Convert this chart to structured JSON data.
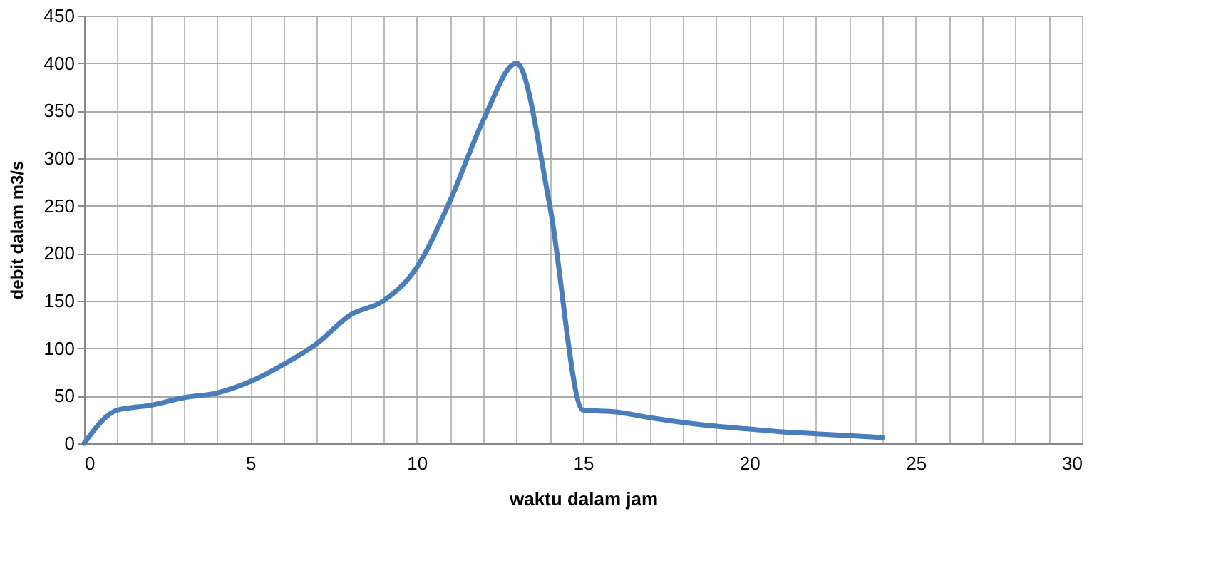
{
  "chart_data": {
    "type": "line",
    "xlabel": "waktu dalam jam",
    "ylabel": "debit dalam m3/s",
    "x": [
      0,
      1,
      2,
      3,
      4,
      5,
      6,
      7,
      8,
      9,
      10,
      11,
      12,
      13,
      14,
      15,
      16,
      17,
      18,
      19,
      20,
      21,
      22,
      23,
      24
    ],
    "series": [
      {
        "color": "#4a7ebb",
        "values": [
          0,
          35,
          40,
          48,
          53,
          65,
          83,
          105,
          135,
          150,
          185,
          255,
          340,
          400,
          250,
          35,
          33,
          27,
          22,
          18,
          15,
          12,
          10,
          8,
          6
        ]
      }
    ],
    "xlim": [
      0,
      30
    ],
    "xticks": [
      0,
      {
        "value": 1,
        "label": null
      },
      {
        "value": 2,
        "label": null
      },
      {
        "value": 3,
        "label": null
      },
      {
        "value": 4,
        "label": null
      },
      5,
      {
        "value": 6,
        "label": null
      },
      {
        "value": 7,
        "label": null
      },
      {
        "value": 8,
        "label": null
      },
      {
        "value": 9,
        "label": null
      },
      10,
      {
        "value": 11,
        "label": null
      },
      {
        "value": 12,
        "label": null
      },
      {
        "value": 13,
        "label": null
      },
      {
        "value": 14,
        "label": null
      },
      15,
      {
        "value": 16,
        "label": null
      },
      {
        "value": 17,
        "label": null
      },
      {
        "value": 18,
        "label": null
      },
      {
        "value": 19,
        "label": null
      },
      20,
      {
        "value": 21,
        "label": null
      },
      {
        "value": 22,
        "label": null
      },
      {
        "value": 23,
        "label": null
      },
      {
        "value": 24,
        "label": null
      },
      25,
      {
        "value": 26,
        "label": null
      },
      {
        "value": 27,
        "label": null
      },
      {
        "value": 28,
        "label": null
      },
      {
        "value": 29,
        "label": null
      },
      30
    ],
    "ylim": [
      0,
      450
    ],
    "yticks": [
      0,
      50,
      100,
      150,
      200,
      250,
      300,
      350,
      400,
      450
    ],
    "grid": true,
    "legend": false,
    "marker": "none",
    "line_style": "solid"
  }
}
